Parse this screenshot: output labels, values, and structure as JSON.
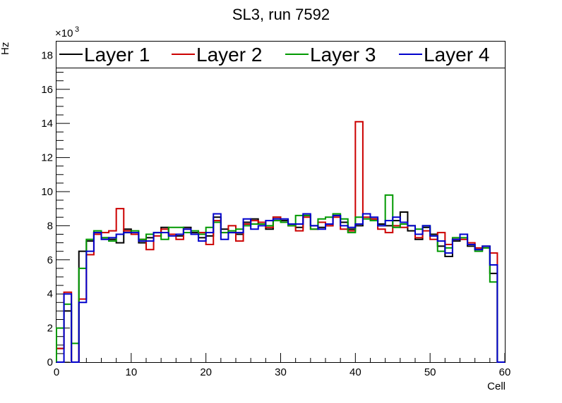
{
  "chart_data": {
    "type": "step-histogram",
    "title": "SL3, run 7592",
    "xlabel": "Cell",
    "ylabel": "Hz",
    "y_exponent_label": "×10",
    "y_exponent_power": "3",
    "xlim": [
      0,
      60
    ],
    "ylim": [
      0,
      18.8
    ],
    "x_ticks": [
      0,
      10,
      20,
      30,
      40,
      50,
      60
    ],
    "y_ticks": [
      0,
      2,
      4,
      6,
      8,
      10,
      12,
      14,
      16,
      18
    ],
    "x_tick_labels": [
      "0",
      "10",
      "20",
      "30",
      "40",
      "50",
      "60"
    ],
    "y_tick_labels": [
      "0",
      "2",
      "4",
      "6",
      "8",
      "10",
      "12",
      "14",
      "16",
      "18"
    ],
    "legend_position": "top",
    "series": [
      {
        "name": "Layer 1",
        "color": "#000000",
        "values": [
          0.8,
          3.0,
          0.0,
          6.5,
          7.1,
          7.6,
          7.3,
          7.2,
          7.0,
          7.8,
          7.5,
          7.0,
          7.3,
          7.6,
          7.9,
          7.5,
          7.4,
          7.9,
          7.6,
          7.3,
          7.4,
          8.5,
          7.8,
          7.6,
          7.5,
          8.2,
          8.4,
          8.1,
          7.8,
          8.5,
          8.3,
          8.0,
          7.9,
          8.6,
          8.0,
          7.9,
          8.0,
          8.6,
          8.2,
          7.8,
          8.0,
          8.7,
          8.4,
          8.1,
          8.0,
          8.3,
          8.8,
          7.7,
          7.2,
          7.9,
          7.5,
          6.8,
          6.2,
          7.1,
          7.5,
          6.8,
          6.6,
          6.8,
          5.2,
          0.0
        ]
      },
      {
        "name": "Layer 2",
        "color": "#cc0000",
        "values": [
          0.8,
          4.1,
          0.0,
          3.7,
          6.3,
          7.5,
          7.6,
          7.7,
          9.0,
          7.7,
          7.5,
          7.2,
          6.6,
          7.4,
          7.8,
          7.5,
          7.2,
          7.8,
          7.5,
          7.6,
          6.9,
          8.3,
          7.6,
          8.0,
          7.1,
          8.1,
          8.3,
          8.2,
          7.9,
          8.5,
          8.2,
          8.0,
          7.7,
          8.5,
          7.8,
          8.2,
          8.0,
          8.5,
          7.8,
          7.7,
          14.1,
          8.5,
          8.4,
          7.8,
          7.6,
          8.0,
          7.9,
          8.0,
          7.3,
          7.7,
          7.2,
          7.6,
          6.9,
          7.2,
          7.2,
          7.0,
          6.7,
          6.7,
          6.4,
          0.0
        ]
      },
      {
        "name": "Layer 3",
        "color": "#009900",
        "values": [
          2.0,
          3.4,
          1.1,
          5.5,
          7.2,
          7.7,
          7.3,
          7.1,
          7.5,
          7.6,
          7.7,
          7.2,
          7.5,
          7.6,
          7.2,
          7.9,
          7.9,
          7.6,
          7.7,
          7.5,
          7.9,
          8.2,
          7.6,
          7.7,
          7.8,
          8.0,
          8.1,
          8.1,
          8.0,
          8.3,
          8.2,
          8.0,
          8.6,
          8.6,
          7.8,
          8.4,
          8.5,
          8.7,
          8.4,
          7.6,
          8.5,
          8.4,
          8.3,
          8.0,
          9.8,
          7.9,
          8.1,
          8.0,
          7.8,
          8.0,
          7.4,
          6.5,
          6.7,
          7.3,
          7.3,
          6.9,
          6.5,
          6.7,
          4.7,
          0.0
        ]
      },
      {
        "name": "Layer 4",
        "color": "#0000cc",
        "values": [
          0.0,
          4.0,
          0.0,
          3.5,
          6.5,
          7.6,
          7.2,
          7.3,
          7.5,
          7.6,
          7.6,
          7.1,
          7.1,
          7.6,
          7.6,
          7.4,
          7.5,
          7.8,
          7.5,
          7.1,
          7.6,
          8.7,
          7.2,
          7.6,
          7.6,
          8.4,
          7.8,
          8.0,
          8.3,
          8.4,
          8.4,
          8.1,
          8.1,
          8.7,
          8.0,
          7.8,
          8.1,
          8.6,
          8.0,
          7.9,
          8.1,
          8.7,
          8.5,
          8.0,
          8.3,
          8.5,
          8.2,
          8.0,
          7.5,
          8.0,
          7.4,
          7.1,
          6.4,
          7.2,
          7.5,
          6.9,
          6.6,
          6.8,
          5.7,
          0.0
        ]
      }
    ]
  }
}
